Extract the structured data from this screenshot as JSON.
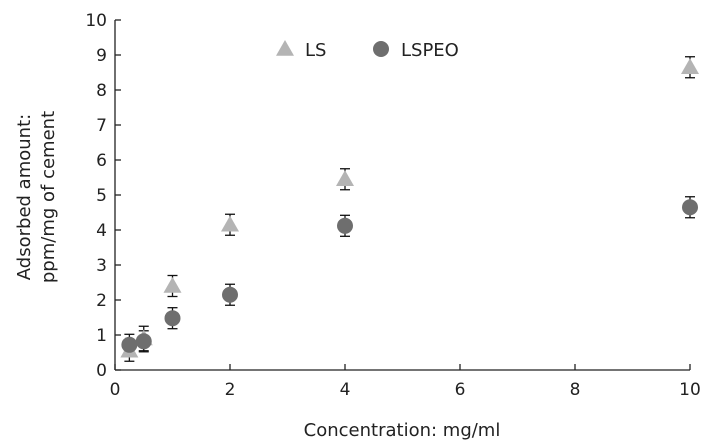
{
  "chart_data": {
    "type": "scatter",
    "title": "",
    "xlabel": "Concentration: mg/ml",
    "ylabel_lines": [
      "Adsorbed amount:",
      "ppm/mg of cement"
    ],
    "xlim": [
      0,
      10
    ],
    "ylim": [
      0,
      10
    ],
    "x_ticks": [
      0,
      2,
      4,
      6,
      8,
      10
    ],
    "y_ticks": [
      0,
      1,
      2,
      3,
      4,
      5,
      6,
      7,
      8,
      9,
      10
    ],
    "grid": false,
    "legend_position": "top-center",
    "series": [
      {
        "name": "LS",
        "marker": "triangle",
        "color": "#b4b4b4",
        "points": [
          {
            "x": 0.25,
            "y": 0.55,
            "err": 0.3
          },
          {
            "x": 0.5,
            "y": 0.9,
            "err": 0.35
          },
          {
            "x": 1,
            "y": 2.4,
            "err": 0.3
          },
          {
            "x": 2,
            "y": 4.15,
            "err": 0.3
          },
          {
            "x": 4,
            "y": 5.45,
            "err": 0.3
          },
          {
            "x": 10,
            "y": 8.65,
            "err": 0.3
          }
        ]
      },
      {
        "name": "LSPEO",
        "marker": "circle",
        "color": "#6e6e6e",
        "points": [
          {
            "x": 0.25,
            "y": 0.72,
            "err": 0.3
          },
          {
            "x": 0.5,
            "y": 0.82,
            "err": 0.3
          },
          {
            "x": 1,
            "y": 1.48,
            "err": 0.3
          },
          {
            "x": 2,
            "y": 2.15,
            "err": 0.3
          },
          {
            "x": 4,
            "y": 4.12,
            "err": 0.3
          },
          {
            "x": 10,
            "y": 4.65,
            "err": 0.3
          }
        ]
      }
    ]
  }
}
